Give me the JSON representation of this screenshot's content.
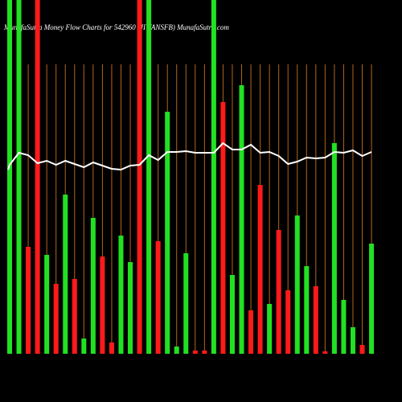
{
  "chart_data": {
    "type": "bar",
    "title": "MunafaSutra Money Flow Charts for 542960 (JIWANSFB) MunafaSutra.com",
    "values": [
      440,
      440,
      133,
      440,
      123,
      87,
      198,
      93,
      19,
      169,
      121,
      14,
      147,
      114,
      440,
      440,
      140,
      301,
      9,
      125,
      4,
      4,
      440,
      313,
      98,
      334,
      54,
      210,
      62,
      154,
      79,
      172,
      109,
      84,
      3,
      262,
      67,
      33,
      11,
      137
    ],
    "colors": [
      "#22e022",
      "#22e022",
      "#ff1a1a",
      "#ff1a1a",
      "#22e022",
      "#ff1a1a",
      "#22e022",
      "#ff1a1a",
      "#22e022",
      "#22e022",
      "#ff1a1a",
      "#ff1a1a",
      "#22e022",
      "#22e022",
      "#ff1a1a",
      "#22e022",
      "#ff1a1a",
      "#22e022",
      "#22e022",
      "#22e022",
      "#ff1a1a",
      "#ff1a1a",
      "#22e022",
      "#ff1a1a",
      "#22e022",
      "#22e022",
      "#ff1a1a",
      "#ff1a1a",
      "#22e022",
      "#ff1a1a",
      "#ff1a1a",
      "#22e022",
      "#22e022",
      "#ff1a1a",
      "#ff1a1a",
      "#22e022",
      "#22e022",
      "#22e022",
      "#ff1a1a",
      "#22e022"
    ],
    "line_values": [
      235,
      250,
      247,
      237,
      240,
      235,
      240,
      236,
      232,
      238,
      234,
      230,
      229,
      234,
      235,
      247,
      241,
      251,
      251,
      252,
      250,
      250,
      250,
      262,
      254,
      254,
      260,
      250,
      251,
      246,
      236,
      239,
      244,
      243,
      244,
      251,
      250,
      253,
      246,
      251
    ],
    "line_color": "#ffffff",
    "ylim": [
      0,
      440
    ]
  }
}
